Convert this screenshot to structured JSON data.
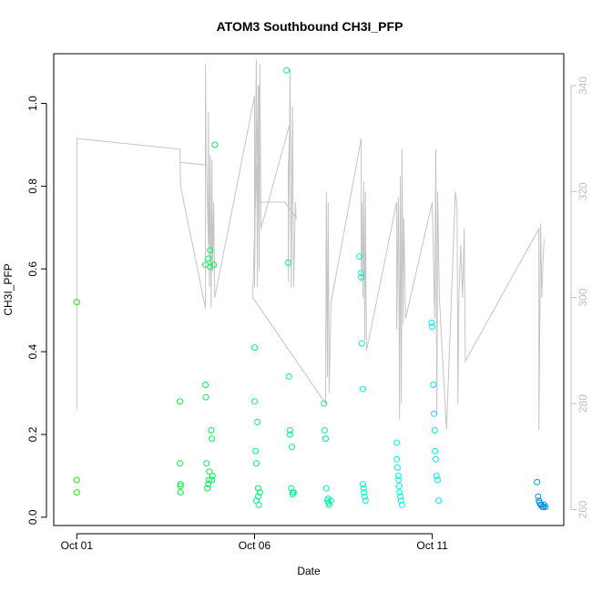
{
  "chart_data": {
    "type": "scatter",
    "title": "ATOM3 Southbound CH3I_PFP",
    "xlabel": "Date",
    "ylabel": "CH3I_PFP",
    "x_ticks": [
      {
        "day": 1,
        "label": "Oct 01"
      },
      {
        "day": 6,
        "label": "Oct 06"
      },
      {
        "day": 11,
        "label": "Oct 11"
      }
    ],
    "xlim_days": [
      0.35,
      14.7
    ],
    "ylim": [
      -0.02,
      1.12
    ],
    "y_ticks": [
      0.0,
      0.2,
      0.4,
      0.6,
      0.8,
      1.0
    ],
    "y_tick_labels": [
      "0.0",
      "0.2",
      "0.4",
      "0.6",
      "0.8",
      "1.0"
    ],
    "y2_range": [
      257,
      346
    ],
    "y2_ticks": [
      260,
      280,
      300,
      320,
      340
    ],
    "y2_tick_labels": [
      "260",
      "280",
      "300",
      "320",
      "340"
    ],
    "grid": false,
    "line_color": "#c4c4c4",
    "secondary_line": [
      [
        1.0,
        279
      ],
      [
        1.0,
        330
      ],
      [
        3.9,
        328
      ],
      [
        3.92,
        321
      ],
      [
        4.62,
        298
      ],
      [
        4.62,
        344
      ],
      [
        4.64,
        325
      ],
      [
        3.92,
        325.5
      ],
      [
        4.65,
        325
      ],
      [
        4.7,
        310
      ],
      [
        4.7,
        335
      ],
      [
        4.73,
        302
      ],
      [
        4.75,
        327
      ],
      [
        4.78,
        298
      ],
      [
        4.8,
        326
      ],
      [
        4.82,
        305
      ],
      [
        4.85,
        318
      ],
      [
        4.88,
        300
      ],
      [
        6.0,
        338
      ],
      [
        6.0,
        302
      ],
      [
        6.05,
        345
      ],
      [
        6.08,
        302
      ],
      [
        6.1,
        340
      ],
      [
        6.13,
        305
      ],
      [
        6.15,
        344
      ],
      [
        6.18,
        313
      ],
      [
        7.0,
        333
      ],
      [
        6.95,
        325
      ],
      [
        6.95,
        303
      ],
      [
        7.0,
        343
      ],
      [
        7.03,
        302
      ],
      [
        7.07,
        336
      ],
      [
        7.1,
        302
      ],
      [
        7.15,
        318
      ],
      [
        7.17,
        315
      ],
      [
        6.85,
        318
      ],
      [
        6.1,
        318
      ],
      [
        6.12,
        340
      ],
      [
        5.95,
        300
      ],
      [
        8.0,
        280
      ],
      [
        8.02,
        320
      ],
      [
        8.05,
        285
      ],
      [
        8.07,
        318
      ],
      [
        8.1,
        282
      ],
      [
        8.15,
        299
      ],
      [
        9.0,
        330
      ],
      [
        9.0,
        303
      ],
      [
        9.02,
        318
      ],
      [
        9.05,
        300
      ],
      [
        9.07,
        322
      ],
      [
        9.1,
        292
      ],
      [
        9.12,
        320
      ],
      [
        9.15,
        290
      ],
      [
        10.0,
        318
      ],
      [
        10.0,
        294
      ],
      [
        10.05,
        319
      ],
      [
        10.08,
        277
      ],
      [
        10.1,
        323
      ],
      [
        10.13,
        280
      ],
      [
        10.15,
        328
      ],
      [
        10.18,
        295
      ],
      [
        10.2,
        315
      ],
      [
        10.25,
        296
      ],
      [
        11.0,
        318
      ],
      [
        11.07,
        296
      ],
      [
        11.1,
        328
      ],
      [
        11.13,
        278
      ],
      [
        11.15,
        320
      ],
      [
        11.2,
        300
      ],
      [
        11.4,
        275
      ],
      [
        11.65,
        320
      ],
      [
        11.7,
        317
      ],
      [
        11.72,
        280
      ],
      [
        11.75,
        300
      ],
      [
        11.8,
        310
      ],
      [
        11.85,
        300
      ],
      [
        11.9,
        313
      ],
      [
        11.93,
        288
      ],
      [
        14.0,
        313
      ],
      [
        14.0,
        275
      ],
      [
        14.05,
        314
      ],
      [
        14.08,
        300
      ],
      [
        14.12,
        308
      ],
      [
        14.15,
        311
      ]
    ],
    "series": [
      {
        "x": [
          1.0,
          1.0,
          1.0,
          3.9,
          3.9,
          3.92,
          3.92,
          3.92,
          4.62,
          4.62,
          4.63,
          4.65,
          4.67,
          4.7,
          4.7,
          4.72,
          4.73,
          4.75,
          4.75,
          4.78,
          4.8,
          4.8,
          4.82,
          4.85,
          4.88,
          6.0,
          6.0,
          6.03,
          6.05,
          6.05,
          6.08,
          6.1,
          6.1,
          6.12,
          6.15,
          6.9,
          6.95,
          6.97,
          7.0,
          7.0,
          7.03,
          7.05,
          7.07,
          7.08,
          7.1,
          7.95,
          7.97,
          8.0,
          8.0,
          8.02,
          8.05,
          8.07,
          8.08,
          8.1,
          8.15,
          8.95,
          9.0,
          9.0,
          9.02,
          9.05,
          9.05,
          9.07,
          9.08,
          9.1,
          9.12,
          10.0,
          10.0,
          10.02,
          10.05,
          10.05,
          10.07,
          10.08,
          10.1,
          10.12,
          10.15,
          10.98,
          11.0,
          11.03,
          11.05,
          11.07,
          11.08,
          11.1,
          11.12,
          11.15,
          11.18,
          13.95,
          13.98,
          14.0,
          14.02,
          14.05,
          14.07,
          14.1,
          14.12,
          14.15,
          14.18
        ],
        "y": [
          0.52,
          0.09,
          0.06,
          0.28,
          0.13,
          0.08,
          0.06,
          0.075,
          0.61,
          0.32,
          0.29,
          0.13,
          0.07,
          0.08,
          0.625,
          0.09,
          0.11,
          0.645,
          0.605,
          0.21,
          0.09,
          0.19,
          0.1,
          0.61,
          0.9,
          0.41,
          0.28,
          0.16,
          0.13,
          0.04,
          0.23,
          0.07,
          0.05,
          0.03,
          0.06,
          1.08,
          0.615,
          0.34,
          0.2,
          0.21,
          0.07,
          0.17,
          0.055,
          0.06,
          0.06,
          0.275,
          0.21,
          0.19,
          0.19,
          0.07,
          0.04,
          0.045,
          0.035,
          0.03,
          0.04,
          0.63,
          0.59,
          0.58,
          0.42,
          0.31,
          0.08,
          0.07,
          0.06,
          0.05,
          0.04,
          0.18,
          0.14,
          0.12,
          0.1,
          0.09,
          0.075,
          0.06,
          0.05,
          0.04,
          0.03,
          0.47,
          0.46,
          0.32,
          0.25,
          0.21,
          0.16,
          0.14,
          0.1,
          0.09,
          0.04,
          0.085,
          0.05,
          0.04,
          0.035,
          0.03,
          0.03,
          0.025,
          0.025,
          0.03,
          0.025
        ]
      }
    ]
  }
}
